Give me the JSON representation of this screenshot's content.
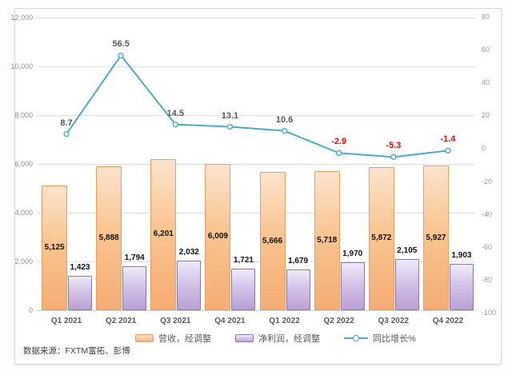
{
  "chart_data": {
    "type": "combo-bar-line",
    "title": "",
    "categories": [
      "Q1 2021",
      "Q2 2021",
      "Q3 2021",
      "Q4 2021",
      "Q1 2022",
      "Q2 2022",
      "Q3 2022",
      "Q4 2022"
    ],
    "series": [
      {
        "name": "营收，经调整",
        "type": "bar",
        "axis": "left",
        "values": [
          5125,
          5888,
          6201,
          6009,
          5666,
          5718,
          5872,
          5927
        ]
      },
      {
        "name": "净利润，经调整",
        "type": "bar",
        "axis": "left",
        "values": [
          1423,
          1794,
          2032,
          1721,
          1679,
          1970,
          2105,
          1903
        ]
      },
      {
        "name": "同比增长%",
        "type": "line",
        "axis": "right",
        "values": [
          8.7,
          56.5,
          14.5,
          13.1,
          10.6,
          -2.9,
          -5.3,
          -1.4
        ]
      }
    ],
    "left_axis": {
      "min": 0,
      "max": 12000,
      "step": 2000,
      "ticks": [
        "12,000",
        "10,000",
        "8,000",
        "6,000",
        "4,000",
        "2,000",
        "0"
      ]
    },
    "right_axis": {
      "min": -100,
      "max": 80,
      "step": 20,
      "ticks": [
        "80",
        "60",
        "40",
        "20",
        "0",
        "-20",
        "-40",
        "-60",
        "-80",
        "-100"
      ]
    },
    "grid": true,
    "legend_position": "bottom",
    "source_note": "数据来源：FXTM富拓、彭博",
    "colors": {
      "revenue_fill_top": "#FCE3CD",
      "revenue_fill_bottom": "#F5AC72",
      "revenue_border": "#EC9C5C",
      "net_profit_fill_top": "#EFEBF7",
      "net_profit_fill_bottom": "#B9A0D6",
      "net_profit_border": "#8D74B3",
      "growth_line": "#4BACC6",
      "growth_label_positive": "#595959",
      "growth_label_negative": "#FF0000",
      "bar_label": "#111111",
      "axis_label": "#8F8F8F",
      "category_label": "#595959",
      "gridline": "#DEDEDE"
    }
  }
}
